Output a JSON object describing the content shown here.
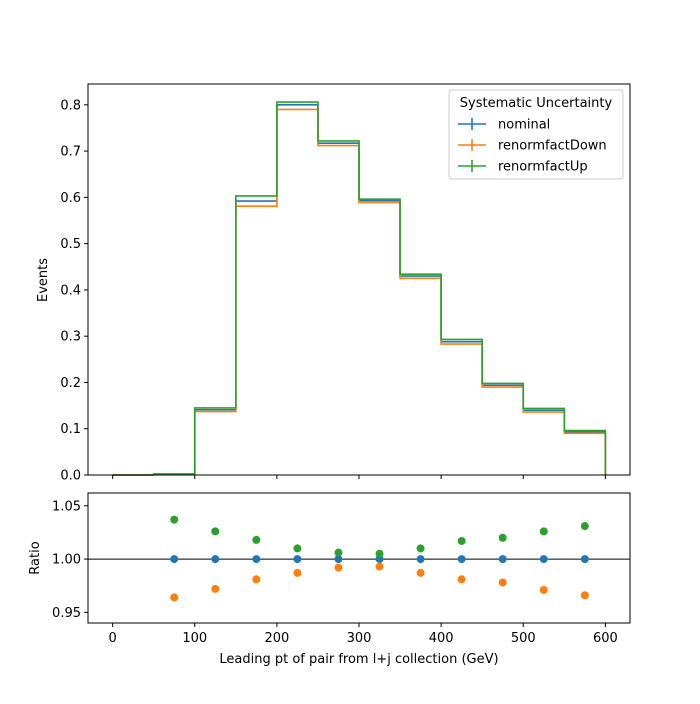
{
  "colors": {
    "nominal": "#1f77b4",
    "renormfactDown": "#ff7f0e",
    "renormfactUp": "#2ca02c",
    "axes": "#000000",
    "background": "#ffffff"
  },
  "chart_data": [
    {
      "type": "step-histogram",
      "panel": "main",
      "title": "",
      "xlabel": "",
      "ylabel": "Events",
      "xlim": [
        -30,
        630
      ],
      "ylim": [
        0,
        0.845
      ],
      "bin_edges": [
        0,
        50,
        100,
        150,
        200,
        250,
        300,
        350,
        400,
        450,
        500,
        550,
        600
      ],
      "x_ticks": [
        0,
        100,
        200,
        300,
        400,
        500,
        600
      ],
      "y_ticks": [
        "0.0",
        "0.1",
        "0.2",
        "0.3",
        "0.4",
        "0.5",
        "0.6",
        "0.7",
        "0.8"
      ],
      "legend": {
        "title": "Systematic Uncertainty",
        "placement": "top-right"
      },
      "series": [
        {
          "name": "nominal",
          "color": "#1f77b4",
          "values": [
            0.0,
            0.002,
            0.141,
            0.592,
            0.8,
            0.717,
            0.593,
            0.43,
            0.288,
            0.194,
            0.14,
            0.093
          ]
        },
        {
          "name": "renormfactDown",
          "color": "#ff7f0e",
          "values": [
            0.0,
            0.002,
            0.137,
            0.581,
            0.79,
            0.712,
            0.589,
            0.425,
            0.283,
            0.19,
            0.136,
            0.09
          ]
        },
        {
          "name": "renormfactUp",
          "color": "#2ca02c",
          "values": [
            0.0,
            0.002,
            0.145,
            0.603,
            0.806,
            0.722,
            0.596,
            0.434,
            0.293,
            0.198,
            0.144,
            0.096
          ]
        }
      ]
    },
    {
      "type": "scatter",
      "panel": "ratio",
      "title": "",
      "xlabel": "Leading pt of pair from l+j collection (GeV)",
      "ylabel": "Ratio",
      "xlim": [
        -30,
        630
      ],
      "ylim": [
        0.94,
        1.062
      ],
      "reference_line": 1.0,
      "x_ticks": [
        0,
        100,
        200,
        300,
        400,
        500,
        600
      ],
      "y_ticks": [
        "0.95",
        "1.00",
        "1.05"
      ],
      "x": [
        75,
        125,
        175,
        225,
        275,
        325,
        375,
        425,
        475,
        525,
        575
      ],
      "series": [
        {
          "name": "nominal",
          "color": "#1f77b4",
          "values": [
            1.0,
            1.0,
            1.0,
            1.0,
            1.0,
            1.0,
            1.0,
            1.0,
            1.0,
            1.0,
            1.0
          ]
        },
        {
          "name": "renormfactDown",
          "color": "#ff7f0e",
          "values": [
            0.964,
            0.972,
            0.981,
            0.987,
            0.992,
            0.993,
            0.987,
            0.981,
            0.978,
            0.971,
            0.966
          ]
        },
        {
          "name": "renormfactUp",
          "color": "#2ca02c",
          "values": [
            1.037,
            1.026,
            1.018,
            1.01,
            1.006,
            1.005,
            1.01,
            1.017,
            1.02,
            1.026,
            1.031
          ]
        }
      ]
    }
  ]
}
